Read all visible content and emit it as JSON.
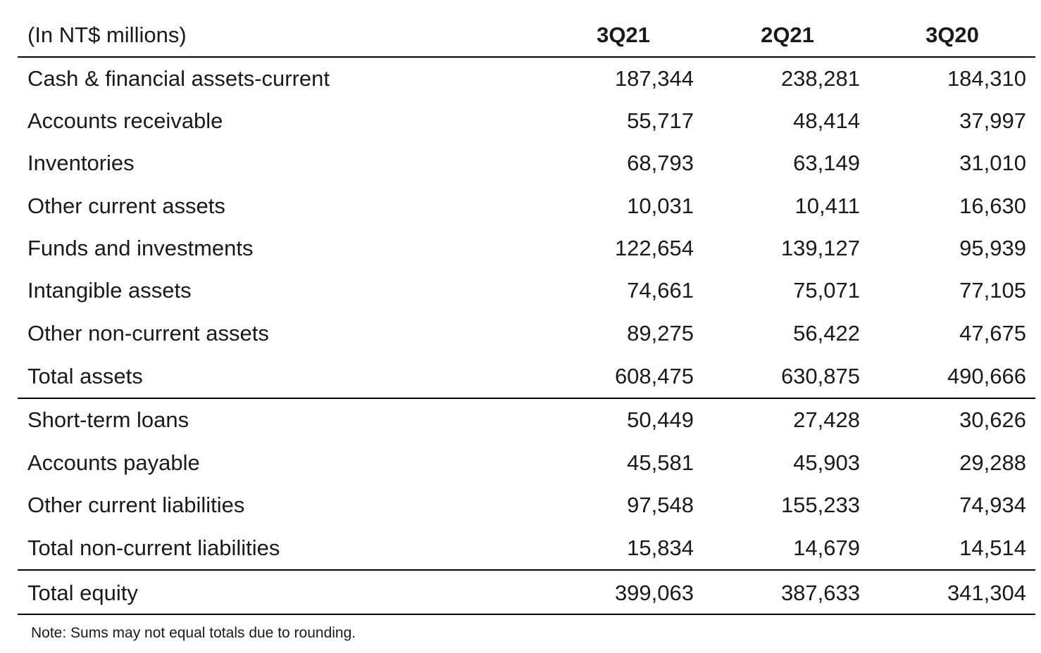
{
  "table": {
    "header": [
      "(In NT$ millions)",
      "3Q21",
      "2Q21",
      "3Q20"
    ],
    "rows": [
      [
        "Cash & financial assets-current",
        "187,344",
        "238,281",
        "184,310"
      ],
      [
        "Accounts receivable",
        "55,717",
        "48,414",
        "37,997"
      ],
      [
        "Inventories",
        "68,793",
        "63,149",
        "31,010"
      ],
      [
        "Other current assets",
        "10,031",
        "10,411",
        "16,630"
      ],
      [
        "Funds and investments",
        "122,654",
        "139,127",
        "95,939"
      ],
      [
        "Intangible assets",
        "74,661",
        "75,071",
        "77,105"
      ],
      [
        "Other non-current assets",
        "89,275",
        "56,422",
        "47,675"
      ],
      [
        "Total assets",
        "608,475",
        "630,875",
        "490,666"
      ],
      [
        "Short-term loans",
        "50,449",
        "27,428",
        "30,626"
      ],
      [
        "Accounts payable",
        "45,581",
        "45,903",
        "29,288"
      ],
      [
        "Other current liabilities",
        "97,548",
        "155,233",
        "74,934"
      ],
      [
        "Total non-current liabilities",
        "15,834",
        "14,679",
        "14,514"
      ],
      [
        "Total equity",
        "399,063",
        "387,633",
        "341,304"
      ]
    ]
  },
  "note": "Note: Sums may not equal totals due to rounding."
}
